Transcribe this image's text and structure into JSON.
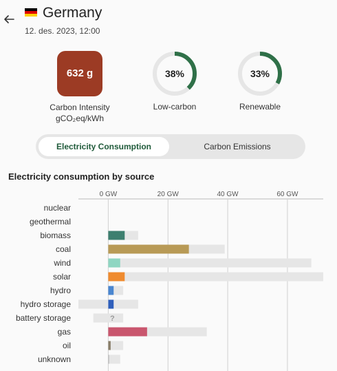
{
  "header": {
    "title": "Germany",
    "datetime": "12. des. 2023, 12:00",
    "flag_colors": [
      "#000000",
      "#dd0000",
      "#ffce00"
    ]
  },
  "metrics": {
    "carbon_intensity": {
      "value": "632 g",
      "label_line1": "Carbon Intensity",
      "label_line2": "gCO₂eq/kWh",
      "color": "#9c3b24"
    },
    "low_carbon": {
      "value": "38%",
      "fraction": 0.38,
      "label": "Low-carbon",
      "color": "#2f7048"
    },
    "renewable": {
      "value": "33%",
      "fraction": 0.33,
      "label": "Renewable",
      "color": "#2f7048"
    }
  },
  "toggle": {
    "options": [
      "Electricity Consumption",
      "Carbon Emissions"
    ],
    "active": "Electricity Consumption"
  },
  "section_title": "Electricity consumption by source",
  "chart_data": {
    "type": "bar",
    "orientation": "horizontal",
    "xlim": [
      -10,
      72
    ],
    "x_ticks": [
      0,
      20,
      40,
      60
    ],
    "x_tick_labels": [
      "0 GW",
      "20 GW",
      "40 GW",
      "60 GW"
    ],
    "categories": [
      "nuclear",
      "geothermal",
      "biomass",
      "coal",
      "wind",
      "solar",
      "hydro",
      "hydro storage",
      "battery storage",
      "gas",
      "oil",
      "unknown"
    ],
    "series": [
      {
        "values": [
          0,
          0,
          5.5,
          27,
          4,
          5.5,
          1.8,
          1.8,
          0,
          13,
          0.8,
          0.3
        ],
        "colors": [
          "#999999",
          "#999999",
          "#3d7f6f",
          "#b89a56",
          "#8fd6c2",
          "#ef8b2f",
          "#4a86d0",
          "#2f5fbb",
          "#999999",
          "#c9566e",
          "#8a7f6a",
          "#bbbbbb"
        ]
      },
      {
        "values": [
          0,
          0,
          10,
          39,
          68,
          72,
          5,
          10,
          5,
          33,
          5,
          4
        ]
      }
    ],
    "negative_capacity": [
      0,
      0,
      0,
      0,
      0,
      0,
      0,
      -10,
      -5,
      0,
      0,
      0
    ],
    "unknown_marker": {
      "category": "battery storage",
      "text": "?"
    },
    "grid": true
  }
}
